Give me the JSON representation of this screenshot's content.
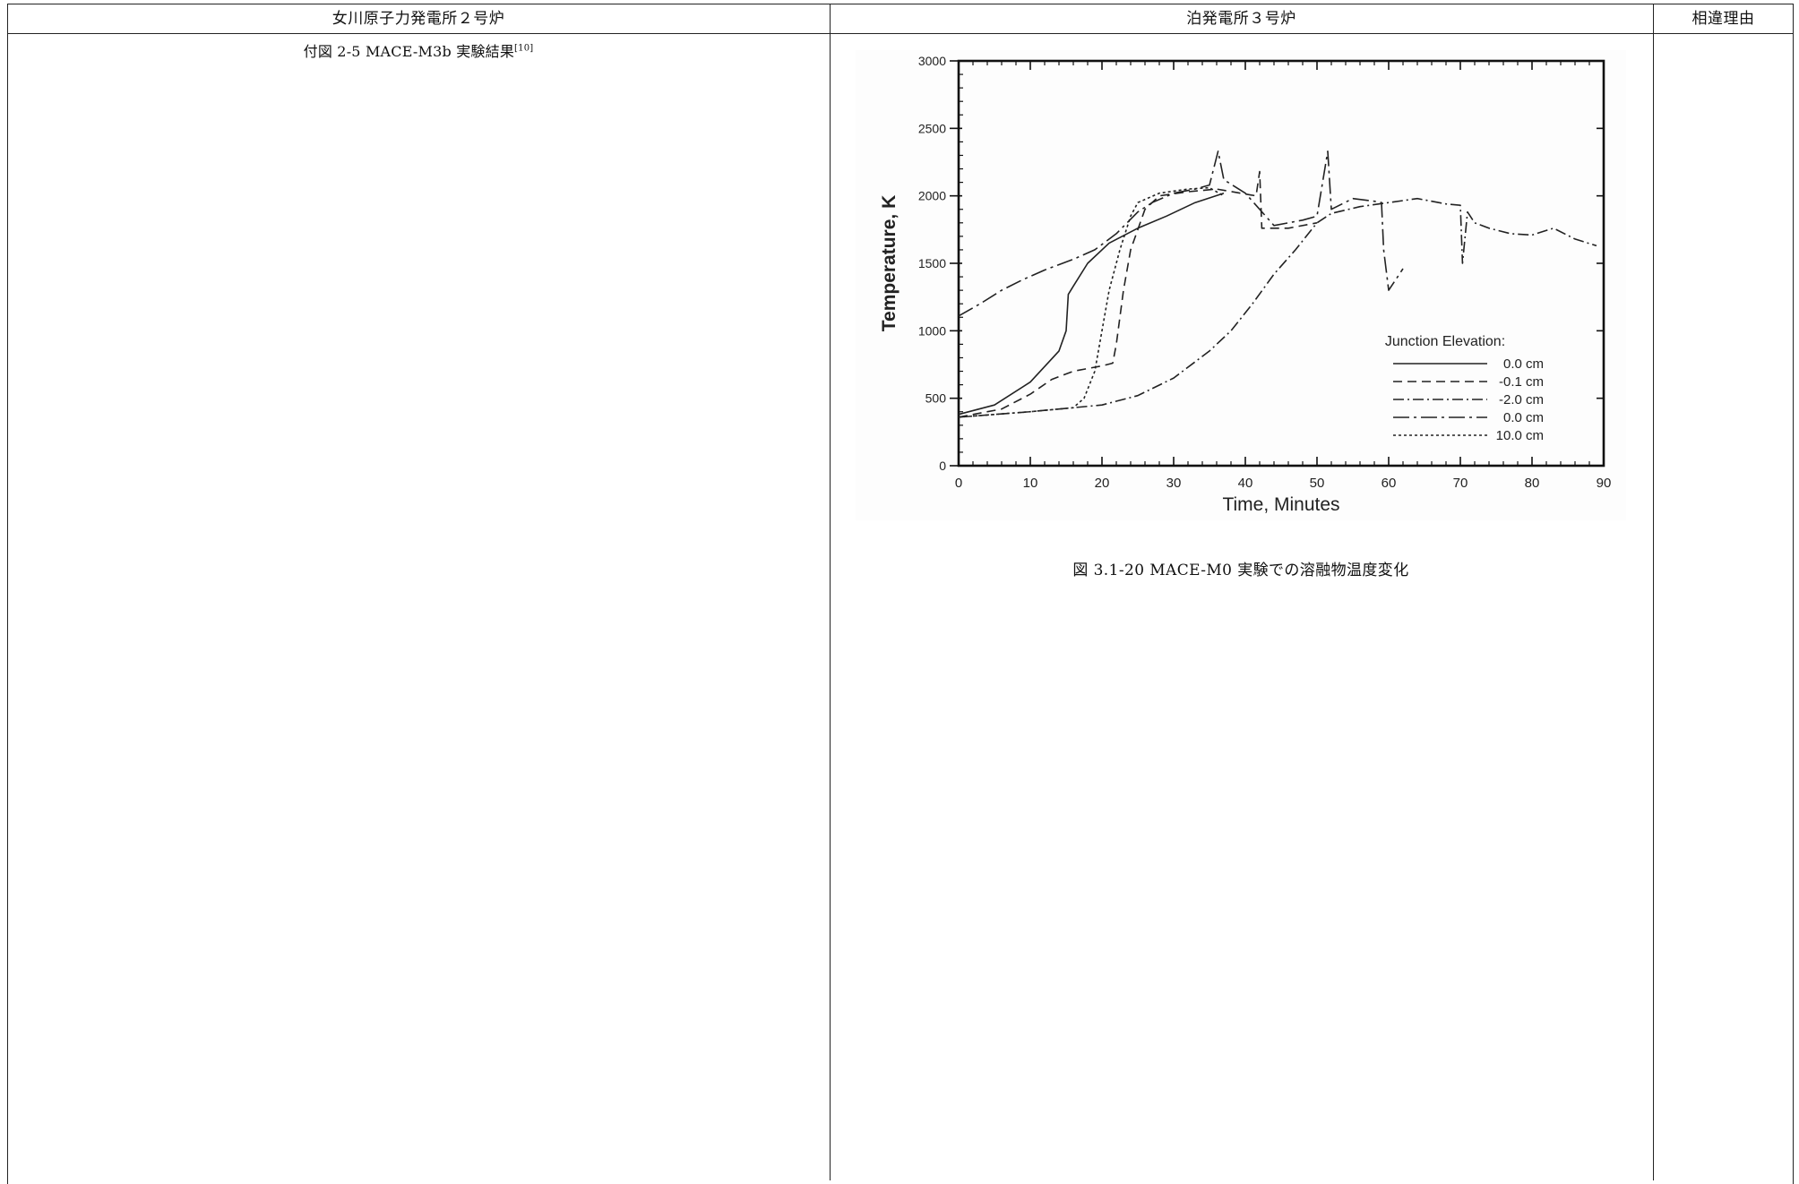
{
  "table": {
    "headers": {
      "onagawa": "女川原子力発電所２号炉",
      "tomari": "泊発電所３号炉",
      "reason": "相違理由"
    },
    "left_caption_main": "付図 2-5 MACE-M3b 実験結果",
    "left_caption_ref": "[10]",
    "figure_caption": "図 3.1-20 MACE-M0 実験での溶融物温度変化"
  },
  "chart_data": {
    "type": "line",
    "title": "",
    "xlabel": "Time, Minutes",
    "ylabel": "Temperature, K",
    "xlim": [
      0,
      90
    ],
    "ylim": [
      0,
      3000
    ],
    "x_ticks": [
      0,
      10,
      20,
      30,
      40,
      50,
      60,
      70,
      80,
      90
    ],
    "y_ticks": [
      0,
      500,
      1000,
      1500,
      2000,
      2500,
      3000
    ],
    "grid": false,
    "legend": {
      "title": "Junction Elevation:",
      "placement": "lower-right"
    },
    "series": [
      {
        "name": "0.0 cm",
        "dash": "solid",
        "color": "#222222",
        "points": [
          [
            0,
            380
          ],
          [
            5,
            450
          ],
          [
            10,
            620
          ],
          [
            14,
            850
          ],
          [
            15,
            1000
          ],
          [
            15.3,
            1270
          ],
          [
            16,
            1330
          ],
          [
            18,
            1500
          ],
          [
            21,
            1650
          ],
          [
            25,
            1760
          ],
          [
            29,
            1850
          ],
          [
            33,
            1950
          ],
          [
            37,
            2020
          ]
        ]
      },
      {
        "name": "-0.1 cm",
        "dash": "dashed",
        "color": "#222222",
        "points": [
          [
            0,
            360
          ],
          [
            6,
            420
          ],
          [
            10,
            530
          ],
          [
            13,
            640
          ],
          [
            16,
            700
          ],
          [
            20,
            740
          ],
          [
            21.5,
            760
          ],
          [
            22,
            900
          ],
          [
            23,
            1300
          ],
          [
            24,
            1600
          ],
          [
            26,
            1900
          ],
          [
            28,
            2000
          ],
          [
            32,
            2030
          ],
          [
            36,
            2050
          ],
          [
            41.5,
            2000
          ],
          [
            42,
            2180
          ],
          [
            42.3,
            1760
          ],
          [
            46,
            1760
          ],
          [
            50,
            1800
          ]
        ]
      },
      {
        "name": "-2.0 cm",
        "dash": "dashdot",
        "color": "#222222",
        "points": [
          [
            0,
            360
          ],
          [
            10,
            400
          ],
          [
            20,
            450
          ],
          [
            25,
            520
          ],
          [
            30,
            650
          ],
          [
            35,
            850
          ],
          [
            38,
            1000
          ],
          [
            41,
            1200
          ],
          [
            44,
            1420
          ],
          [
            47,
            1600
          ],
          [
            50,
            1800
          ],
          [
            52,
            1870
          ],
          [
            56,
            1920
          ],
          [
            60,
            1950
          ],
          [
            64,
            1980
          ],
          [
            68,
            1940
          ],
          [
            70,
            1930
          ],
          [
            70.3,
            1500
          ],
          [
            71,
            1880
          ],
          [
            72,
            1800
          ],
          [
            74,
            1760
          ],
          [
            77,
            1720
          ],
          [
            80,
            1710
          ],
          [
            83,
            1760
          ],
          [
            86,
            1680
          ],
          [
            89,
            1630
          ]
        ]
      },
      {
        "name": "0.0 cm",
        "dash": "longdashdot",
        "color": "#222222",
        "points": [
          [
            0,
            1110
          ],
          [
            3,
            1200
          ],
          [
            6,
            1300
          ],
          [
            9,
            1380
          ],
          [
            12,
            1450
          ],
          [
            16,
            1530
          ],
          [
            19,
            1600
          ],
          [
            22,
            1720
          ],
          [
            25,
            1880
          ],
          [
            27,
            1950
          ],
          [
            30,
            2020
          ],
          [
            33,
            2050
          ],
          [
            35,
            2080
          ],
          [
            36.2,
            2330
          ],
          [
            37,
            2120
          ],
          [
            40,
            2020
          ],
          [
            44,
            1780
          ],
          [
            48,
            1820
          ],
          [
            50,
            1850
          ],
          [
            51.5,
            2330
          ],
          [
            52,
            1900
          ],
          [
            55,
            1980
          ],
          [
            58,
            1960
          ],
          [
            59,
            1950
          ],
          [
            59.3,
            1600
          ],
          [
            60,
            1300
          ],
          [
            62,
            1460
          ]
        ]
      },
      {
        "name": "10.0 cm",
        "dash": "dotted",
        "color": "#222222",
        "points": [
          [
            0,
            360
          ],
          [
            10,
            400
          ],
          [
            16,
            430
          ],
          [
            17.5,
            500
          ],
          [
            19,
            700
          ],
          [
            20,
            1000
          ],
          [
            21,
            1300
          ],
          [
            22.5,
            1600
          ],
          [
            24,
            1850
          ],
          [
            25,
            1950
          ],
          [
            28,
            2020
          ],
          [
            32,
            2050
          ],
          [
            35,
            2060
          ],
          [
            37,
            2000
          ]
        ]
      }
    ]
  }
}
